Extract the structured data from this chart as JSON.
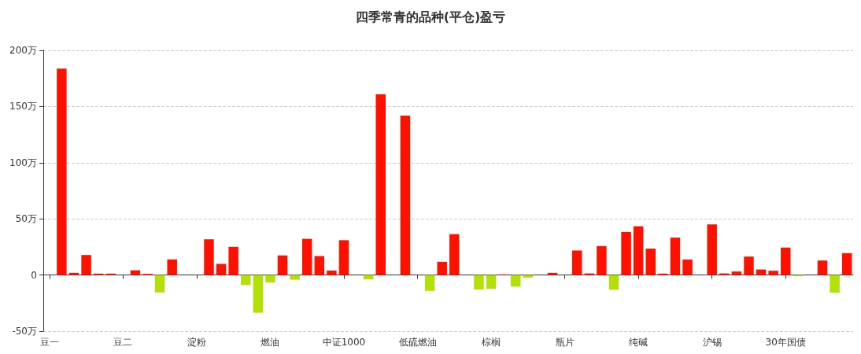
{
  "chart_data": {
    "type": "bar",
    "title": "四季常青的品种(平仓)盈亏",
    "categories": [
      "豆一",
      null,
      null,
      null,
      null,
      null,
      "豆二",
      null,
      null,
      null,
      null,
      null,
      "淀粉",
      null,
      null,
      null,
      null,
      null,
      "燃油",
      null,
      null,
      null,
      null,
      null,
      "中证1000",
      null,
      null,
      null,
      null,
      null,
      "低硫燃油",
      null,
      null,
      null,
      null,
      null,
      "棕榈",
      null,
      null,
      null,
      null,
      null,
      "瓶片",
      null,
      null,
      null,
      null,
      null,
      "纯碱",
      null,
      null,
      null,
      null,
      null,
      "沪锡",
      null,
      null,
      null,
      null,
      null,
      "30年国债",
      null,
      null,
      null,
      null,
      null
    ],
    "values": [
      null,
      183.8,
      1.9,
      17.8,
      1.2,
      1.2,
      null,
      4.2,
      1,
      -15.5,
      13.9,
      null,
      0,
      31.8,
      9.9,
      25.1,
      -8.9,
      -33.6,
      -6.6,
      17.4,
      -4.2,
      32.2,
      16.9,
      4,
      31,
      0,
      -3.8,
      161,
      null,
      141.8,
      0.3,
      -14.1,
      11.7,
      36.4,
      null,
      -12.9,
      -12.2,
      0.5,
      -10.3,
      -2.3,
      0,
      1.9,
      0,
      21.8,
      1.4,
      25.8,
      -13.1,
      38.3,
      43.4,
      23.5,
      1.2,
      33.3,
      13.8,
      null,
      45.1,
      1.4,
      3.1,
      16.4,
      4.9,
      3.8,
      24.4,
      -0.9,
      null,
      12.9,
      -15.7,
      19.5
    ],
    "colors": [
      "#b3e00a",
      "#ff1100",
      "#ff1100",
      "#ff1100",
      "#ff1100",
      "#ff1100",
      "#b3e00a",
      "#ff1100",
      "#ff1100",
      "#b3e00a",
      "#ff1100",
      "#b3e00a",
      "#ff1100",
      "#ff1100",
      "#ff1100",
      "#ff1100",
      "#b3e00a",
      "#b3e00a",
      "#b3e00a",
      "#ff1100",
      "#b3e00a",
      "#ff1100",
      "#ff1100",
      "#ff1100",
      "#ff1100",
      "#ff1100",
      "#b3e00a",
      "#ff1100",
      "#b3e00a",
      "#ff1100",
      "#ff1100",
      "#b3e00a",
      "#ff1100",
      "#ff1100",
      "#ff1100",
      "#b3e00a",
      "#b3e00a",
      "#ff1100",
      "#b3e00a",
      "#b3e00a",
      "#ff1100",
      "#ff1100",
      "#ff1100",
      "#ff1100",
      "#ff1100",
      "#ff1100",
      "#b3e00a",
      "#ff1100",
      "#ff1100",
      "#ff1100",
      "#ff1100",
      "#ff1100",
      "#ff1100",
      "#b3e00a",
      "#ff1100",
      "#ff1100",
      "#ff1100",
      "#ff1100",
      "#ff1100",
      "#ff1100",
      "#ff1100",
      "#b3e00a",
      "#b3e00a",
      "#ff1100",
      "#b3e00a",
      "#ff1100"
    ],
    "ylim": [
      -50,
      200
    ],
    "yticks": [
      {
        "value": -50,
        "label": "-50万"
      },
      {
        "value": 0,
        "label": "0"
      },
      {
        "value": 50,
        "label": "50万"
      },
      {
        "value": 100,
        "label": "100万"
      },
      {
        "value": 150,
        "label": "150万"
      },
      {
        "value": 200,
        "label": "200万"
      }
    ],
    "grid": "y"
  }
}
